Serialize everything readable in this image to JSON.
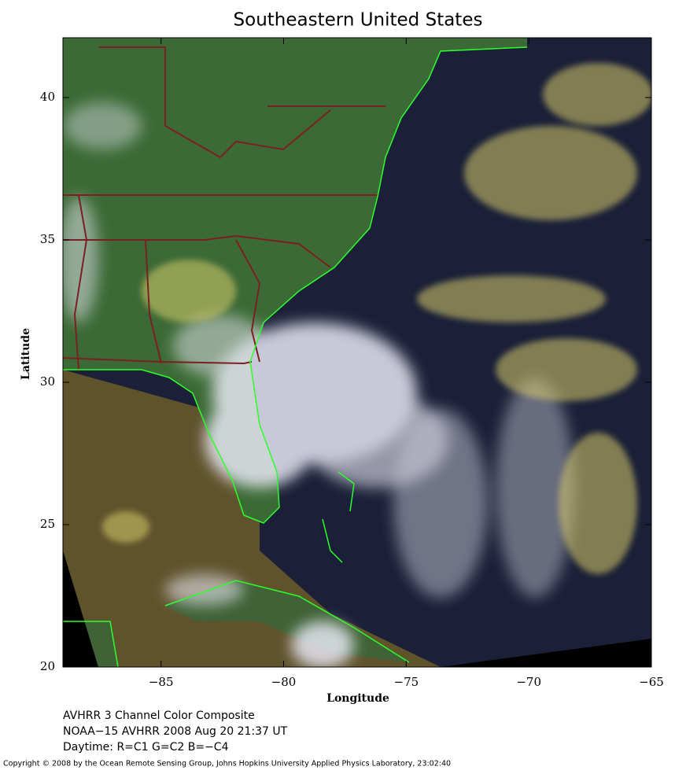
{
  "chart_data": {
    "type": "map",
    "title": "Southeastern United States",
    "xlabel": "Longitude",
    "ylabel": "Latitude",
    "xlim": [
      -89,
      -65
    ],
    "ylim": [
      20,
      42.1
    ],
    "xticks": [
      {
        "value": -85,
        "label": "−85"
      },
      {
        "value": -80,
        "label": "−80"
      },
      {
        "value": -75,
        "label": "−75"
      },
      {
        "value": -70,
        "label": "−70"
      },
      {
        "value": -65,
        "label": "−65"
      }
    ],
    "yticks": [
      20,
      25,
      30,
      35,
      40
    ]
  },
  "caption": {
    "lines": [
      "AVHRR 3 Channel Color Composite",
      "NOAA−15 AVHRR 2008 Aug 20 21:37 UT",
      "Daytime: R=C1 G=C2 B=−C4"
    ],
    "copyright": "Copyright © 2008 by the Ocean Remote Sensing Group, Johns Hopkins University Applied Physics Laboratory, 23:02:40"
  }
}
